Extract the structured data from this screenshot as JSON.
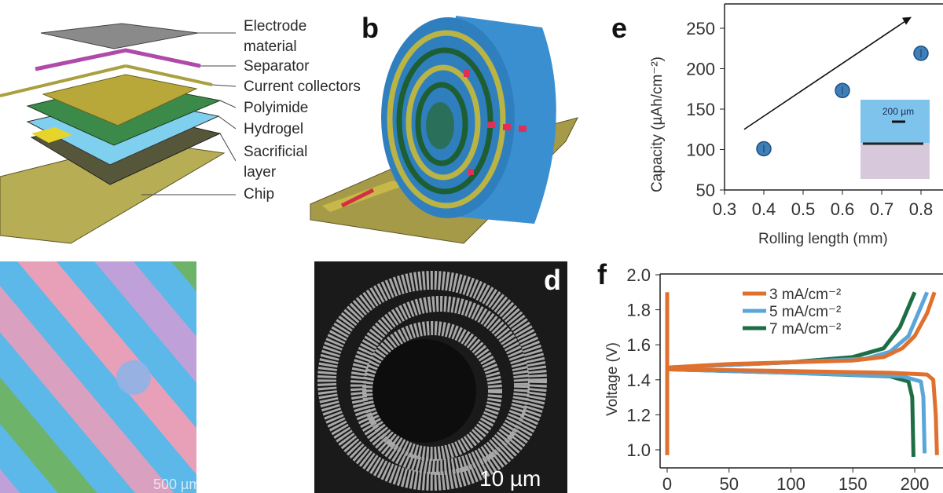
{
  "panel_a": {
    "layers": [
      "Electrode",
      "material",
      "Separator",
      "Current collectors",
      "Polyimide",
      "Hydrogel",
      "Sacrificial",
      "layer",
      "Chip"
    ]
  },
  "panel_b": {
    "letter": "b"
  },
  "panel_c": {
    "scale_bar": "500 µm"
  },
  "panel_d": {
    "letter": "d",
    "scale_bar": "10 µm"
  },
  "colors": {
    "blue_marker": "#3f7fb8",
    "orange": "#e0702e",
    "light_blue": "#5aa6d8",
    "green": "#1e6e45"
  },
  "chart_data": [
    {
      "panel": "e",
      "type": "scatter",
      "xlabel": "Rolling length (mm)",
      "ylabel": "Capacity (µAh/cm⁻²)",
      "xlim": [
        0.3,
        0.85
      ],
      "ylim": [
        50,
        275
      ],
      "xticks": [
        "0.3",
        "0.4",
        "0.5",
        "0.6",
        "0.7",
        "0.8"
      ],
      "yticks": [
        "50",
        "100",
        "150",
        "200",
        "250"
      ],
      "points": [
        {
          "x": 0.4,
          "y": 101
        },
        {
          "x": 0.6,
          "y": 173
        },
        {
          "x": 0.8,
          "y": 219
        }
      ],
      "trend_arrow": {
        "from": [
          0.35,
          125
        ],
        "to": [
          0.77,
          262
        ]
      },
      "inset_scale_bar": "200 µm"
    },
    {
      "panel": "f",
      "type": "line",
      "xlabel": "",
      "ylabel": "Voltage (V)",
      "xlim": [
        -10,
        225
      ],
      "ylim": [
        0.9,
        2.0
      ],
      "xticks": [
        "0",
        "50",
        "100",
        "150",
        "200"
      ],
      "yticks": [
        "1.0",
        "1.2",
        "1.4",
        "1.6",
        "1.8",
        "2.0"
      ],
      "legend_position": "top-center",
      "series": [
        {
          "name": "3 mA/cm⁻²",
          "color": "#e0702e",
          "charge": [
            [
              0,
              1.47
            ],
            [
              50,
              1.49
            ],
            [
              100,
              1.5
            ],
            [
              150,
              1.51
            ],
            [
              175,
              1.53
            ],
            [
              190,
              1.58
            ],
            [
              200,
              1.65
            ],
            [
              210,
              1.78
            ],
            [
              216,
              1.9
            ]
          ],
          "discharge": [
            [
              0,
              1.46
            ],
            [
              100,
              1.45
            ],
            [
              180,
              1.44
            ],
            [
              210,
              1.43
            ],
            [
              215,
              1.4
            ],
            [
              217,
              1.2
            ],
            [
              218,
              0.97
            ]
          ]
        },
        {
          "name": "5 mA/cm⁻²",
          "color": "#5aa6d8",
          "charge": [
            [
              0,
              1.47
            ],
            [
              100,
              1.5
            ],
            [
              160,
              1.52
            ],
            [
              180,
              1.56
            ],
            [
              195,
              1.65
            ],
            [
              210,
              1.9
            ]
          ],
          "discharge": [
            [
              0,
              1.46
            ],
            [
              100,
              1.44
            ],
            [
              190,
              1.42
            ],
            [
              205,
              1.39
            ],
            [
              207,
              1.3
            ],
            [
              208,
              0.98
            ]
          ]
        },
        {
          "name": "7 mA/cm⁻²",
          "color": "#1e6e45",
          "charge": [
            [
              0,
              1.47
            ],
            [
              100,
              1.5
            ],
            [
              150,
              1.53
            ],
            [
              175,
              1.58
            ],
            [
              188,
              1.7
            ],
            [
              200,
              1.9
            ]
          ],
          "discharge": [
            [
              0,
              1.46
            ],
            [
              100,
              1.44
            ],
            [
              180,
              1.42
            ],
            [
              195,
              1.39
            ],
            [
              198,
              1.3
            ],
            [
              199,
              0.96
            ]
          ]
        }
      ],
      "initial_segment": [
        [
          0,
          0.97
        ],
        [
          0,
          1.9
        ]
      ]
    }
  ]
}
